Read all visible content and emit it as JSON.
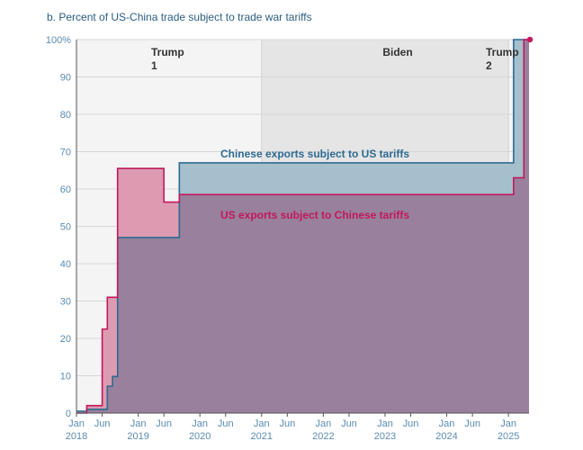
{
  "chart_data": {
    "type": "area",
    "title": "b. Percent of US-China trade subject to trade war tariffs",
    "ylim": [
      0,
      100
    ],
    "xlim": [
      "2018-01",
      "2025-05"
    ],
    "y_ticks": [
      "0",
      "10",
      "20",
      "30",
      "40",
      "50",
      "60",
      "70",
      "80",
      "90",
      "100%"
    ],
    "x_ticks": [
      {
        "month": "2018-01",
        "label": "Jan",
        "year": "2018"
      },
      {
        "month": "2018-06",
        "label": "Jun",
        "year": ""
      },
      {
        "month": "2019-01",
        "label": "Jan",
        "year": "2019"
      },
      {
        "month": "2019-06",
        "label": "Jun",
        "year": ""
      },
      {
        "month": "2020-01",
        "label": "Jan",
        "year": "2020"
      },
      {
        "month": "2020-06",
        "label": "Jun",
        "year": ""
      },
      {
        "month": "2021-01",
        "label": "Jan",
        "year": "2021"
      },
      {
        "month": "2021-06",
        "label": "Jun",
        "year": ""
      },
      {
        "month": "2022-01",
        "label": "Jan",
        "year": "2022"
      },
      {
        "month": "2022-06",
        "label": "Jun",
        "year": ""
      },
      {
        "month": "2023-01",
        "label": "Jan",
        "year": "2023"
      },
      {
        "month": "2023-06",
        "label": "Jun",
        "year": ""
      },
      {
        "month": "2024-01",
        "label": "Jan",
        "year": "2024"
      },
      {
        "month": "2024-06",
        "label": "Jun",
        "year": ""
      },
      {
        "month": "2025-01",
        "label": "Jan",
        "year": "2025"
      }
    ],
    "eras": [
      {
        "name": "Trump\n1",
        "start": "2018-01",
        "end": "2021-01",
        "color": "#f4f4f4"
      },
      {
        "name": "Biden",
        "start": "2021-01",
        "end": "2025-01",
        "color": "#e5e5e5"
      },
      {
        "name": "Trump\n2",
        "start": "2025-01",
        "end": "2025-05",
        "color": "#f4f4f4"
      }
    ],
    "series": [
      {
        "name": "Chinese exports subject to US tariffs",
        "color": "#2e6a91",
        "fill": "#a5bfcc",
        "steps": [
          [
            "2018-01",
            0.5
          ],
          [
            "2018-03",
            1
          ],
          [
            "2018-07",
            7.2
          ],
          [
            "2018-08",
            9.8
          ],
          [
            "2018-09",
            47
          ],
          [
            "2019-09",
            67
          ],
          [
            "2025-02",
            100
          ],
          [
            "2025-05",
            100
          ]
        ]
      },
      {
        "name": "US exports subject to Chinese tariffs",
        "color": "#c2185b",
        "fill": "#dd9bb2",
        "steps": [
          [
            "2018-01",
            0
          ],
          [
            "2018-03",
            2
          ],
          [
            "2018-06",
            22.5
          ],
          [
            "2018-07",
            31
          ],
          [
            "2018-09",
            65.5
          ],
          [
            "2019-06",
            56.5
          ],
          [
            "2019-09",
            58.5
          ],
          [
            "2025-02",
            63
          ],
          [
            "2025-04",
            100
          ],
          [
            "2025-05",
            100
          ]
        ]
      }
    ],
    "overlap_fill": "#99809d"
  }
}
